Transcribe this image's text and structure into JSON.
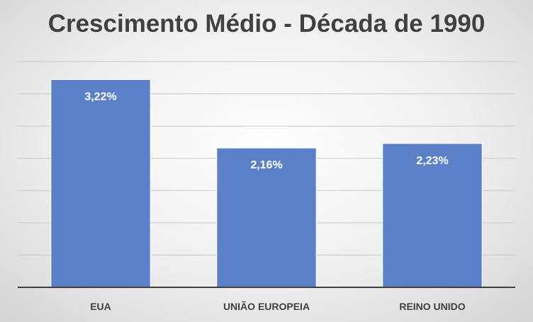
{
  "chart_data": {
    "type": "bar",
    "title": "Crescimento Médio - Década de 1990",
    "categories": [
      "EUA",
      "UNIÃO EUROPEIA",
      "REINO UNIDO"
    ],
    "values": [
      3.22,
      2.16,
      2.23
    ],
    "value_labels": [
      "3,22%",
      "2,16%",
      "2,23%"
    ],
    "ylim": [
      0,
      3.5
    ],
    "grid": true,
    "legend": "none",
    "colors": {
      "bar": "#5b80c8",
      "bar_border": "#ffffff",
      "title": "#404040",
      "axis_label": "#404040",
      "value_label": "#ffffff",
      "gridline": "#c8c8c8",
      "axis_line": "#404040"
    }
  }
}
